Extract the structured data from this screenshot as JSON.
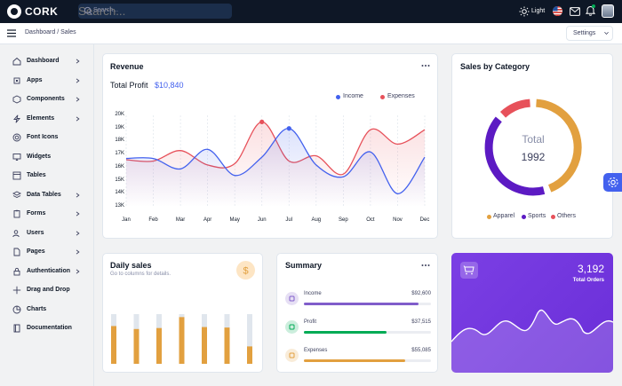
{
  "brand": {
    "name": "CORK"
  },
  "search": {
    "placeholder": "Search..."
  },
  "topbar": {
    "theme_label": "Light"
  },
  "breadcrumb": {
    "parent": "Dashboard",
    "separator": "/",
    "current": "Sales"
  },
  "settings": {
    "label": "Settings"
  },
  "sidebar": {
    "items": [
      {
        "label": "Dashboard",
        "icon": "home-icon",
        "has_children": true
      },
      {
        "label": "Apps",
        "icon": "cpu-icon",
        "has_children": true
      },
      {
        "label": "Components",
        "icon": "box-icon",
        "has_children": true
      },
      {
        "label": "Elements",
        "icon": "zap-icon",
        "has_children": true
      },
      {
        "label": "Font Icons",
        "icon": "target-icon",
        "has_children": false
      },
      {
        "label": "Widgets",
        "icon": "airplay-icon",
        "has_children": false
      },
      {
        "label": "Tables",
        "icon": "layout-icon",
        "has_children": false
      },
      {
        "label": "Data Tables",
        "icon": "layers-icon",
        "has_children": true
      },
      {
        "label": "Forms",
        "icon": "clipboard-icon",
        "has_children": true
      },
      {
        "label": "Users",
        "icon": "users-icon",
        "has_children": true
      },
      {
        "label": "Pages",
        "icon": "file-icon",
        "has_children": true
      },
      {
        "label": "Authentication",
        "icon": "lock-icon",
        "has_children": true
      },
      {
        "label": "Drag and Drop",
        "icon": "move-icon",
        "has_children": false
      },
      {
        "label": "Charts",
        "icon": "pie-chart-icon",
        "has_children": false
      },
      {
        "label": "Documentation",
        "icon": "book-icon",
        "has_children": false
      }
    ]
  },
  "revenue": {
    "title": "Revenue",
    "total_label": "Total Profit",
    "total_value": "$10,840"
  },
  "sales_category": {
    "title": "Sales by Category",
    "center_label": "Total",
    "center_value": "1992"
  },
  "daily_sales": {
    "title": "Daily sales",
    "subtitle": "Go to columns for details."
  },
  "summary": {
    "title": "Summary",
    "rows": [
      {
        "label": "Income",
        "value": "$92,600",
        "fill": 0.9,
        "color": "#805dca"
      },
      {
        "label": "Profit",
        "value": "$37,515",
        "fill": 0.65,
        "color": "#00ab55"
      },
      {
        "label": "Expenses",
        "value": "$55,085",
        "fill": 0.8,
        "color": "#e2a03f"
      }
    ]
  },
  "orders": {
    "value": "3,192",
    "label": "Total Orders"
  },
  "colors": {
    "income": "#4361ee",
    "expenses": "#e7515a",
    "apparel": "#e2a03f",
    "sports": "#5c1ac3",
    "others": "#e7515a",
    "daily_bar": "#e2a03f",
    "daily_track": "#e0e6ed"
  },
  "chart_data": [
    {
      "type": "line",
      "categories": [
        "Jan",
        "Feb",
        "Mar",
        "Apr",
        "May",
        "Jun",
        "Jul",
        "Aug",
        "Sep",
        "Oct",
        "Nov",
        "Dec"
      ],
      "series": [
        {
          "name": "Income",
          "values": [
            16.7,
            16.7,
            15.9,
            17.4,
            15.4,
            16.8,
            19.0,
            16.2,
            15.3,
            17.2,
            14.0,
            16.8
          ]
        },
        {
          "name": "Expenses",
          "values": [
            16.6,
            16.5,
            17.3,
            16.2,
            16.3,
            19.5,
            16.5,
            16.9,
            15.5,
            18.9,
            17.8,
            18.9
          ]
        }
      ],
      "yticks": [
        "13K",
        "14K",
        "15K",
        "16K",
        "17K",
        "18K",
        "19K",
        "20K"
      ],
      "ylim": [
        13,
        20
      ],
      "legend": "top-right"
    },
    {
      "type": "pie",
      "categories": [
        "Apparel",
        "Sports",
        "Others"
      ],
      "values": [
        45,
        42,
        13
      ],
      "legend": "bottom"
    },
    {
      "type": "bar",
      "values": [
        0.76,
        0.7,
        0.72,
        0.94,
        0.74,
        0.73,
        0.35
      ],
      "ylim": [
        0,
        1
      ]
    }
  ]
}
